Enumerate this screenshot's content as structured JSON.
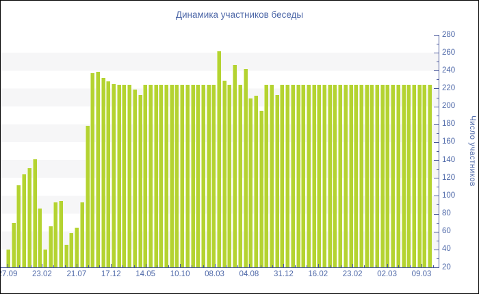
{
  "title": "Динамика участников беседы",
  "chart_data": {
    "type": "bar",
    "title": "Динамика участников беседы",
    "xlabel": "",
    "ylabel": "Число участников",
    "ylim": [
      20,
      280
    ],
    "y_tick_step": 20,
    "y_minor_tick_step": 10,
    "y_tick_labels": [
      "20",
      "40",
      "60",
      "80",
      "100",
      "120",
      "140",
      "160",
      "180",
      "200",
      "220",
      "240",
      "260",
      "280"
    ],
    "x_tick_labels": [
      "27.09",
      "23.02",
      "21.07",
      "17.12",
      "14.05",
      "10.10",
      "08.03",
      "04.08",
      "31.12",
      "16.02",
      "23.02",
      "02.03",
      "09.03"
    ],
    "legend_position": "none",
    "grid": "alternating-horizontal-bands",
    "values": [
      40,
      70,
      112,
      124,
      131,
      141,
      86,
      40,
      66,
      93,
      94,
      45,
      58,
      64,
      93,
      178,
      237,
      239,
      232,
      228,
      225,
      224,
      224,
      224,
      219,
      213,
      224,
      224,
      224,
      224,
      224,
      224,
      224,
      224,
      224,
      224,
      224,
      224,
      224,
      224,
      262,
      229,
      224,
      246,
      224,
      242,
      209,
      212,
      195,
      224,
      224,
      213,
      224,
      224,
      224,
      224,
      224,
      224,
      224,
      224,
      224,
      224,
      224,
      224,
      224,
      224,
      224,
      224,
      224,
      224,
      224,
      224,
      224,
      224,
      224,
      224,
      224,
      224,
      224,
      224,
      224
    ]
  },
  "colors": {
    "background": "#ffffff",
    "border": "#000000",
    "bar_fill": "#b4d331",
    "bar_edge_highlight": "#d9ec8c",
    "axis_line": "#47569a",
    "label_text": "#4e68a8",
    "stripe": "#f6f6f7"
  }
}
